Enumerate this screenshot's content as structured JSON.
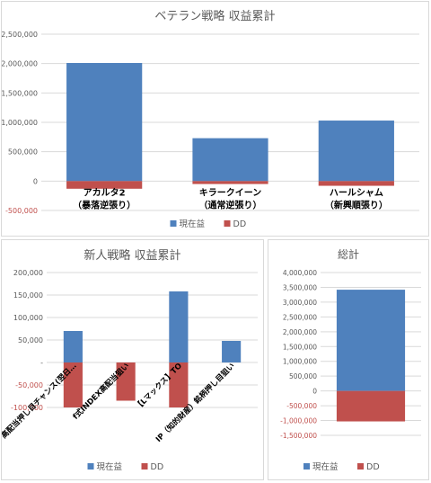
{
  "colors": {
    "current": "#4f81bd",
    "dd": "#c0504d",
    "grid": "#d9d9d9",
    "text": "#595959",
    "label": "#000000"
  },
  "chart_data": [
    {
      "type": "bar",
      "title": "ベテラン戦略 収益累計",
      "categories": [
        [
          "アカルタ2",
          "（暴落逆張り）"
        ],
        [
          "キラークイーン",
          "（通常逆張り）"
        ],
        [
          "ハールシャム",
          "（新興順張り）"
        ]
      ],
      "series": [
        {
          "name": "現在益",
          "color": "#4f81bd",
          "values": [
            2010000,
            730000,
            1030000
          ]
        },
        {
          "name": "DD",
          "color": "#c0504d",
          "values": [
            -130000,
            -50000,
            -80000
          ]
        }
      ],
      "ylim": [
        -500000,
        2500000
      ],
      "yticks": [
        -500000,
        0,
        500000,
        1000000,
        1500000,
        2000000,
        2500000
      ],
      "ytick_labels": [
        "-500,000",
        "0",
        "500,000",
        "1,000,000",
        "1,500,000",
        "2,000,000",
        "2,500,000"
      ],
      "grid": true,
      "legend": "bottom"
    },
    {
      "type": "bar",
      "title": "新人戦略 収益累計",
      "categories": [
        "高配当押し目チャンス(翌日…",
        "f式INDEX高配当狙い",
        "【Lマックス】TO",
        "IP（知的財産）銘柄押し目狙い"
      ],
      "series": [
        {
          "name": "現在益",
          "color": "#4f81bd",
          "values": [
            70000,
            0,
            158000,
            48000
          ]
        },
        {
          "name": "DD",
          "color": "#c0504d",
          "values": [
            -100000,
            -85000,
            -100000,
            0
          ]
        }
      ],
      "ylim": [
        -100000,
        200000
      ],
      "yticks": [
        -100000,
        -50000,
        0,
        50000,
        100000,
        150000,
        200000
      ],
      "ytick_labels": [
        "-100,000",
        "-50,000",
        "-",
        "50,000",
        "100,000",
        "150,000",
        "200,000"
      ],
      "grid": true,
      "legend": "bottom"
    },
    {
      "type": "bar",
      "title": "総計",
      "categories": [
        ""
      ],
      "series": [
        {
          "name": "現在益",
          "color": "#4f81bd",
          "values": [
            3420000
          ]
        },
        {
          "name": "DD",
          "color": "#c0504d",
          "values": [
            -1030000
          ]
        }
      ],
      "ylim": [
        -1500000,
        4000000
      ],
      "yticks": [
        -1500000,
        -1000000,
        -500000,
        0,
        500000,
        1000000,
        1500000,
        2000000,
        2500000,
        3000000,
        3500000,
        4000000
      ],
      "ytick_labels": [
        "-1,500,000",
        "-1,000,000",
        "-500,000",
        "0",
        "500,000",
        "1,000,000",
        "1,500,000",
        "2,000,000",
        "2,500,000",
        "3,000,000",
        "3,500,000",
        "4,000,000"
      ],
      "grid": true,
      "legend": "bottom"
    }
  ]
}
